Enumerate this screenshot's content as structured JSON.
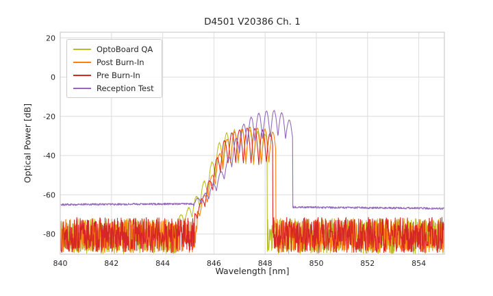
{
  "chart_data": {
    "type": "line",
    "title": "D4501 V20386 Ch. 1",
    "xlabel": "Wavelength [nm]",
    "ylabel": "Optical Power [dB]",
    "xlim": [
      840,
      855
    ],
    "ylim": [
      -90.3,
      22.9
    ],
    "xticks": [
      840,
      842,
      844,
      846,
      848,
      850,
      852,
      854
    ],
    "yticks": [
      20,
      0,
      -20,
      -40,
      -60,
      -80
    ],
    "grid": true,
    "grid_color": "#dcdcdc",
    "border_color": "#cccccc",
    "background": "#ffffff",
    "legend_position": "upper left",
    "step": 0.012,
    "series": [
      {
        "id": "optoboard-qa",
        "name": "OptoBoard QA",
        "color": "#bcbd22",
        "seed": 11,
        "segments": [
          {
            "type": "noise",
            "x0": 840,
            "x1": 844.55,
            "base": -81,
            "amp": 9
          },
          {
            "type": "lobes",
            "x0": 844.55,
            "x1": 848.08,
            "spacing": 0.3,
            "phase": 846.35,
            "jitter": 0.4,
            "top": [
              [
                844.55,
                -72
              ],
              [
                845.0,
                -67
              ],
              [
                845.4,
                -59
              ],
              [
                845.8,
                -48
              ],
              [
                846.1,
                -36
              ],
              [
                846.4,
                -29
              ],
              [
                846.8,
                -27
              ],
              [
                847.2,
                -26.5
              ],
              [
                847.6,
                -27.5
              ],
              [
                848.08,
                -29.5
              ]
            ],
            "depth": [
              [
                844.55,
                5
              ],
              [
                845.5,
                9
              ],
              [
                846.2,
                14
              ],
              [
                846.8,
                17
              ],
              [
                847.4,
                18
              ],
              [
                848.08,
                15
              ]
            ]
          },
          {
            "type": "noise",
            "x0": 848.08,
            "x1": 855.05,
            "base": -81,
            "amp": 9
          }
        ]
      },
      {
        "id": "post-burn-in",
        "name": "Post Burn-In",
        "color": "#ff7f0e",
        "seed": 12,
        "segments": [
          {
            "type": "noise",
            "x0": 840,
            "x1": 845.35,
            "base": -81,
            "amp": 8.5
          },
          {
            "type": "lobes",
            "x0": 845.35,
            "x1": 848.42,
            "spacing": 0.3,
            "phase": 846.95,
            "jitter": 0.4,
            "top": [
              [
                845.35,
                -68
              ],
              [
                845.7,
                -58
              ],
              [
                846.0,
                -47
              ],
              [
                846.3,
                -36
              ],
              [
                846.6,
                -29.5
              ],
              [
                847.0,
                -26.5
              ],
              [
                847.4,
                -25.5
              ],
              [
                847.8,
                -26
              ],
              [
                848.1,
                -27
              ],
              [
                848.42,
                -28.5
              ]
            ],
            "depth": [
              [
                845.35,
                5
              ],
              [
                846.1,
                10
              ],
              [
                846.7,
                15
              ],
              [
                847.3,
                18
              ],
              [
                847.9,
                18
              ],
              [
                848.42,
                14
              ]
            ]
          },
          {
            "type": "noise",
            "x0": 848.42,
            "x1": 855.05,
            "base": -81,
            "amp": 8.5
          }
        ]
      },
      {
        "id": "pre-burn-in",
        "name": "Pre Burn-In",
        "color": "#d62728",
        "seed": 13,
        "segments": [
          {
            "type": "noise",
            "x0": 840,
            "x1": 845.25,
            "base": -80.5,
            "amp": 9
          },
          {
            "type": "lobes",
            "x0": 845.25,
            "x1": 848.3,
            "spacing": 0.3,
            "phase": 846.85,
            "jitter": 0.4,
            "top": [
              [
                845.25,
                -69
              ],
              [
                845.6,
                -60
              ],
              [
                845.9,
                -50
              ],
              [
                846.2,
                -38
              ],
              [
                846.5,
                -30
              ],
              [
                846.9,
                -27
              ],
              [
                847.3,
                -26
              ],
              [
                847.7,
                -26.5
              ],
              [
                848.0,
                -27.5
              ],
              [
                848.3,
                -29
              ]
            ],
            "depth": [
              [
                845.25,
                5
              ],
              [
                846.0,
                10
              ],
              [
                846.6,
                15
              ],
              [
                847.2,
                18
              ],
              [
                847.8,
                18
              ],
              [
                848.3,
                14
              ]
            ]
          },
          {
            "type": "noise",
            "x0": 848.3,
            "x1": 855.05,
            "base": -80.5,
            "amp": 9
          }
        ]
      },
      {
        "id": "reception-test",
        "name": "Reception Test",
        "color": "#9467bd",
        "seed": 14,
        "segments": [
          {
            "type": "flat",
            "x0": 840,
            "x1": 845.2,
            "base": -65,
            "base2": -64.6,
            "amp": 0.5
          },
          {
            "type": "lobes",
            "x0": 845.2,
            "x1": 849.08,
            "spacing": 0.3,
            "phase": 848.2,
            "jitter": 0.25,
            "top": [
              [
                845.2,
                -63
              ],
              [
                845.7,
                -59
              ],
              [
                846.1,
                -52
              ],
              [
                846.5,
                -43
              ],
              [
                846.9,
                -30
              ],
              [
                847.2,
                -23
              ],
              [
                847.5,
                -20
              ],
              [
                847.8,
                -18.2
              ],
              [
                848.1,
                -17.2
              ],
              [
                848.45,
                -17
              ],
              [
                848.7,
                -18.5
              ],
              [
                849.08,
                -24
              ]
            ],
            "depth": [
              [
                845.2,
                3
              ],
              [
                846.4,
                7
              ],
              [
                846.9,
                11
              ],
              [
                847.4,
                13
              ],
              [
                848.0,
                14.5
              ],
              [
                848.6,
                13
              ],
              [
                849.08,
                10
              ]
            ]
          },
          {
            "type": "flat",
            "x0": 849.08,
            "x1": 855.05,
            "base": -66.3,
            "base2": -67,
            "amp": 0.5
          }
        ]
      }
    ]
  }
}
